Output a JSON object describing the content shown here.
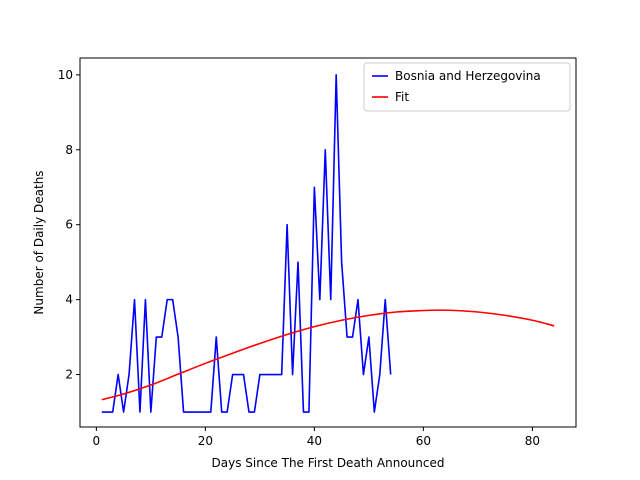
{
  "chart_data": {
    "type": "line",
    "title": "",
    "xlabel": "Days Since The First Death Announced",
    "ylabel": "Number of Daily Deaths",
    "xlim": [
      -3,
      88
    ],
    "ylim": [
      0.6,
      10.45
    ],
    "xticks": [
      0,
      20,
      40,
      60,
      80
    ],
    "yticks": [
      2,
      4,
      6,
      8,
      10
    ],
    "grid": false,
    "legend_position": "top-right",
    "series": [
      {
        "name": "Bosnia and Herzegovina",
        "color": "#0000ff",
        "x": [
          1,
          2,
          3,
          4,
          5,
          6,
          7,
          8,
          9,
          10,
          11,
          12,
          13,
          14,
          15,
          16,
          17,
          18,
          19,
          20,
          21,
          22,
          23,
          24,
          25,
          26,
          27,
          28,
          29,
          30,
          31,
          32,
          33,
          34,
          35,
          36,
          37,
          38,
          39,
          40,
          41,
          42,
          43,
          44,
          45,
          46,
          47,
          48,
          49,
          50,
          51,
          52,
          53,
          54
        ],
        "y": [
          1,
          1,
          1,
          2,
          1,
          2,
          4,
          1,
          4,
          1,
          3,
          3,
          4,
          4,
          3,
          1,
          1,
          1,
          1,
          1,
          1,
          3,
          1,
          1,
          2,
          2,
          2,
          1,
          1,
          2,
          2,
          2,
          2,
          2,
          6,
          2,
          5,
          1,
          1,
          7,
          4,
          8,
          4,
          10,
          5,
          3,
          3,
          4,
          2,
          3,
          1,
          2,
          4,
          2
        ]
      },
      {
        "name": "Fit",
        "color": "#ff0000",
        "x": [
          1,
          5,
          10,
          15,
          20,
          25,
          30,
          35,
          40,
          45,
          50,
          55,
          60,
          63,
          66,
          70,
          75,
          80,
          84
        ],
        "y": [
          1.33,
          1.48,
          1.72,
          2.01,
          2.3,
          2.57,
          2.83,
          3.07,
          3.28,
          3.45,
          3.58,
          3.67,
          3.71,
          3.72,
          3.71,
          3.67,
          3.58,
          3.45,
          3.3
        ]
      }
    ]
  }
}
